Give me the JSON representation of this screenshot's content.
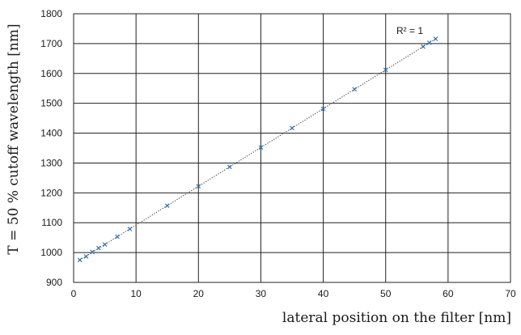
{
  "chart_data": {
    "type": "scatter",
    "xlabel": "lateral position on the filter  [nm]",
    "ylabel": "T = 50 % cutoff wavelength [nm]",
    "xlim": [
      0,
      70
    ],
    "ylim": [
      900,
      1800
    ],
    "x_ticks": [
      0,
      10,
      20,
      30,
      40,
      50,
      60,
      70
    ],
    "y_ticks": [
      900,
      1000,
      1100,
      1200,
      1300,
      1400,
      1500,
      1600,
      1700,
      1800
    ],
    "grid": true,
    "marker": "x",
    "marker_color": "#2f6fb0",
    "trendline": {
      "type": "linear",
      "style": "dotted",
      "r_squared_label": "R² = 1"
    },
    "series": [
      {
        "x": [
          1,
          2,
          3,
          4,
          5,
          7,
          9,
          15,
          20,
          25,
          30,
          35,
          40,
          45,
          50,
          56,
          57,
          58
        ],
        "y": [
          975,
          987,
          1002,
          1015,
          1027,
          1053,
          1079,
          1157,
          1222,
          1287,
          1352,
          1417,
          1481,
          1547,
          1612,
          1690,
          1703,
          1716
        ]
      }
    ]
  }
}
